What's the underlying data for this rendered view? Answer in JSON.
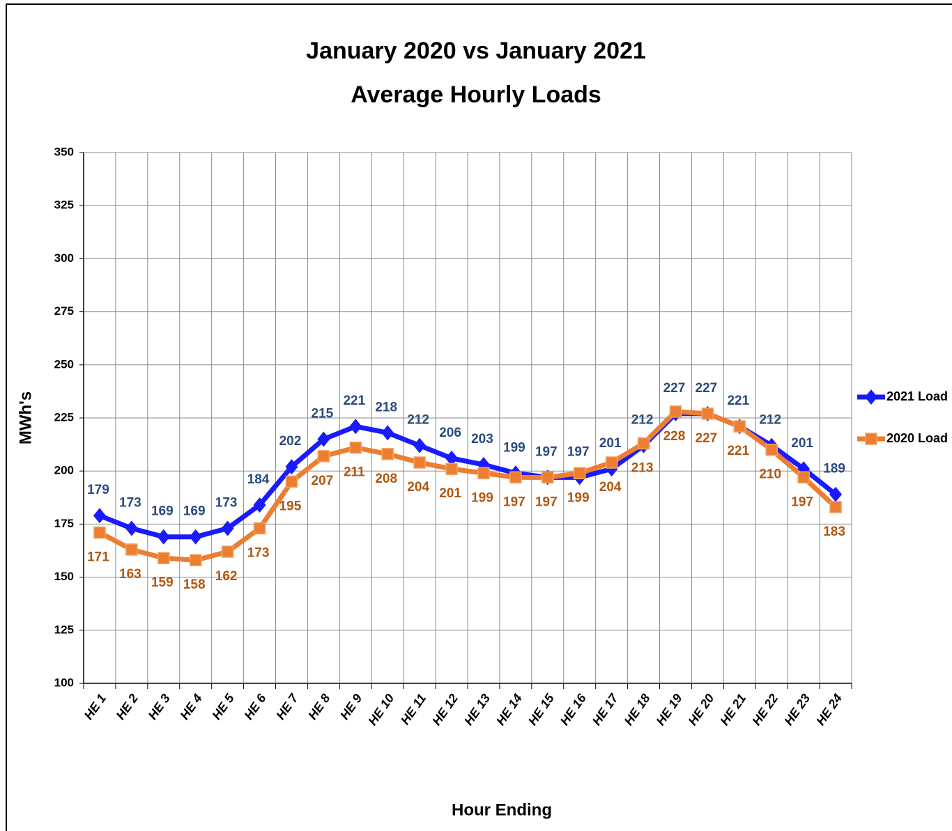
{
  "chart_data": {
    "type": "line",
    "title": "January 2020 vs January 2021",
    "subtitle": "Average Hourly Loads",
    "x_label": "Hour Ending",
    "y_label": "MWh's",
    "categories": [
      "HE 1",
      "HE 2",
      "HE 3",
      "HE 4",
      "HE 5",
      "HE 6",
      "HE 7",
      "HE 8",
      "HE 9",
      "HE 10",
      "HE 11",
      "HE 12",
      "HE 13",
      "HE 14",
      "HE 15",
      "HE 16",
      "HE 17",
      "HE 18",
      "HE 19",
      "HE 20",
      "HE 21",
      "HE 22",
      "HE 23",
      "HE 24"
    ],
    "series": [
      {
        "name": "2021 Load",
        "color": "#1a1aff",
        "label_color": "#2b4a7e",
        "marker": "diamond",
        "label_position": "above",
        "values": [
          179,
          173,
          169,
          169,
          173,
          184,
          202,
          215,
          221,
          218,
          212,
          206,
          203,
          199,
          197,
          197,
          201,
          212,
          227,
          227,
          221,
          212,
          201,
          189
        ]
      },
      {
        "name": "2020 Load",
        "color": "#ed7d31",
        "label_color": "#b0570f",
        "marker": "square",
        "label_position": "below",
        "values": [
          171,
          163,
          159,
          158,
          162,
          173,
          195,
          207,
          211,
          208,
          204,
          201,
          199,
          197,
          197,
          199,
          204,
          213,
          228,
          227,
          221,
          210,
          197,
          183
        ]
      }
    ],
    "ylim": [
      100,
      350
    ],
    "yticks": [
      100,
      125,
      150,
      175,
      200,
      225,
      250,
      275,
      300,
      325,
      350
    ],
    "grid": true,
    "legend": "right"
  }
}
